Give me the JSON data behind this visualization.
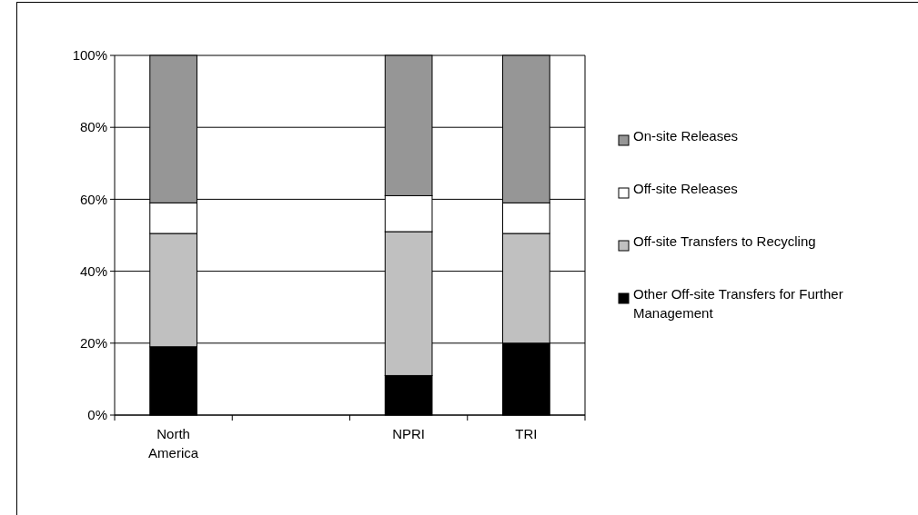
{
  "chart_data": {
    "type": "bar",
    "stacked": true,
    "categories": [
      "North America",
      null,
      "NPRI",
      "TRI"
    ],
    "series": [
      {
        "name": "Other Off-site Transfers for Further Management",
        "color": "#000000",
        "values": [
          19,
          null,
          11,
          20
        ]
      },
      {
        "name": "Off-site Transfers to Recycling",
        "color": "#c0c0c0",
        "values": [
          31.5,
          null,
          40,
          30.5
        ]
      },
      {
        "name": "Off-site Releases",
        "color": "#ffffff",
        "values": [
          8.5,
          null,
          10,
          8.5
        ]
      },
      {
        "name": "On-site Releases",
        "color": "#969696",
        "values": [
          41,
          null,
          39,
          41
        ]
      }
    ],
    "ylim": [
      0,
      100
    ],
    "yticks": [
      {
        "value": 0,
        "label": "0%"
      },
      {
        "value": 20,
        "label": "20%"
      },
      {
        "value": 40,
        "label": "40%"
      },
      {
        "value": 60,
        "label": "60%"
      },
      {
        "value": 80,
        "label": "80%"
      },
      {
        "value": 100,
        "label": "100%"
      }
    ],
    "grid": "y",
    "legend": "right"
  }
}
